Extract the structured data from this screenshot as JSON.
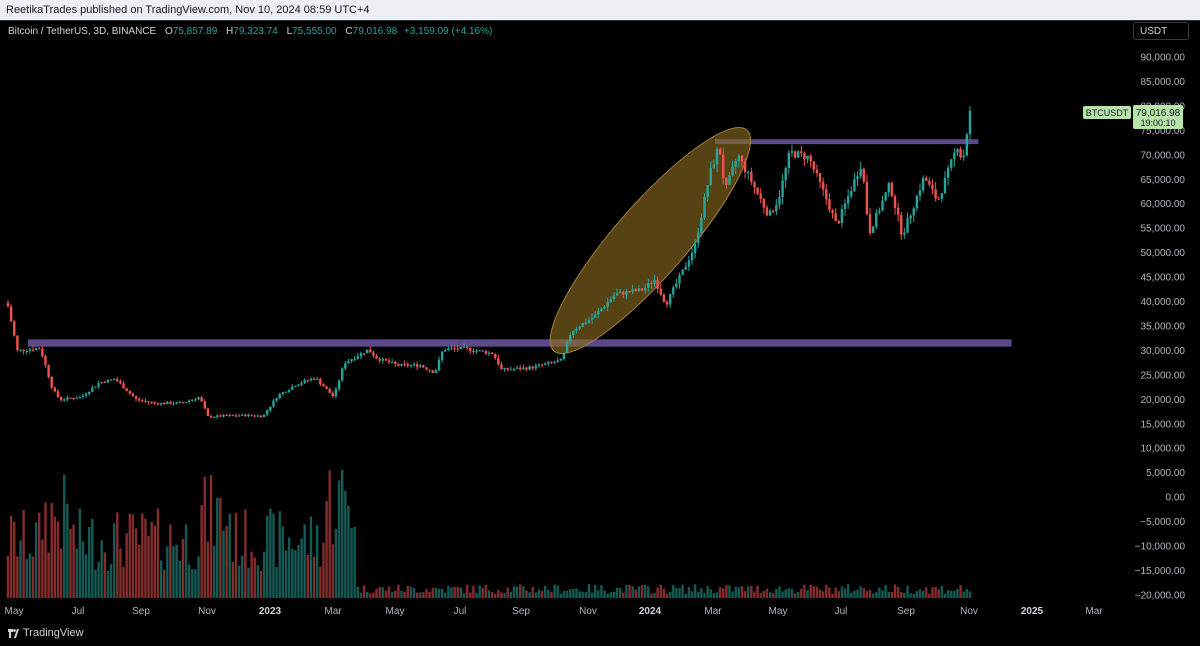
{
  "publisher_line": "ReetikaTrades published on TradingView.com, Nov 10, 2024 08:59 UTC+4",
  "header": {
    "symbol": "Bitcoin / TetherUS, 3D, BINANCE",
    "o_label": "O",
    "o_value": "75,857.89",
    "h_label": "H",
    "h_value": "79,323.74",
    "l_label": "L",
    "l_value": "75,555.00",
    "c_label": "C",
    "c_value": "79,016.98",
    "change": "+3,159.09 (+4.16%)"
  },
  "currency_button": "USDT",
  "brand": "TradingView",
  "colors": {
    "up": "#26a69a",
    "down": "#ef5350",
    "zone": "#5b4a8a",
    "ellipse": "#8a6a1e",
    "price_tag": "#b6e5a9"
  },
  "chart_data": {
    "type": "candlestick",
    "title": "Bitcoin / TetherUS, 3D, BINANCE",
    "grid": false,
    "y_axis": {
      "ticks": [
        "90,000.00",
        "85,000.00",
        "80,000.00",
        "75,000.00",
        "70,000.00",
        "65,000.00",
        "60,000.00",
        "55,000.00",
        "50,000.00",
        "45,000.00",
        "40,000.00",
        "35,000.00",
        "30,000.00",
        "25,000.00",
        "20,000.00",
        "15,000.00",
        "10,000.00",
        "5,000.00",
        "0.00",
        "−5,000.00",
        "−10,000.00",
        "−15,000.00",
        "−20,000.00"
      ],
      "price_range": [
        15000,
        90000
      ]
    },
    "x_axis": {
      "ticks": [
        "May",
        "Jul",
        "Sep",
        "Nov",
        "2023",
        "Mar",
        "May",
        "Jul",
        "Sep",
        "Nov",
        "2024",
        "Mar",
        "May",
        "Jul",
        "Sep",
        "Nov",
        "2025",
        "Mar"
      ],
      "bold": [
        "2023",
        "2024",
        "2025"
      ]
    },
    "price_path": [
      [
        "2022-05-01",
        39000
      ],
      [
        "2022-05-10",
        30000
      ],
      [
        "2022-06-01",
        30500
      ],
      [
        "2022-06-13",
        22000
      ],
      [
        "2022-06-20",
        20000
      ],
      [
        "2022-07-10",
        20500
      ],
      [
        "2022-07-28",
        23500
      ],
      [
        "2022-08-12",
        24200
      ],
      [
        "2022-09-01",
        20000
      ],
      [
        "2022-09-20",
        19200
      ],
      [
        "2022-10-15",
        19300
      ],
      [
        "2022-11-01",
        20500
      ],
      [
        "2022-11-09",
        16500
      ],
      [
        "2022-12-15",
        16800
      ],
      [
        "2023-01-01",
        16600
      ],
      [
        "2023-01-15",
        20800
      ],
      [
        "2023-02-01",
        23000
      ],
      [
        "2023-02-20",
        24500
      ],
      [
        "2023-03-10",
        20500
      ],
      [
        "2023-03-20",
        27500
      ],
      [
        "2023-04-12",
        30200
      ],
      [
        "2023-04-20",
        28500
      ],
      [
        "2023-05-10",
        27000
      ],
      [
        "2023-06-01",
        27000
      ],
      [
        "2023-06-15",
        25500
      ],
      [
        "2023-06-23",
        30300
      ],
      [
        "2023-07-14",
        30400
      ],
      [
        "2023-08-10",
        29400
      ],
      [
        "2023-08-18",
        26100
      ],
      [
        "2023-09-15",
        26500
      ],
      [
        "2023-10-15",
        28000
      ],
      [
        "2023-10-24",
        34000
      ],
      [
        "2023-11-15",
        37000
      ],
      [
        "2023-12-05",
        41500
      ],
      [
        "2024-01-01",
        42500
      ],
      [
        "2024-01-12",
        44500
      ],
      [
        "2024-01-23",
        39500
      ],
      [
        "2024-02-10",
        47000
      ],
      [
        "2024-02-20",
        51500
      ],
      [
        "2024-03-05",
        66000
      ],
      [
        "2024-03-14",
        72000
      ],
      [
        "2024-03-20",
        62500
      ],
      [
        "2024-04-01",
        70000
      ],
      [
        "2024-04-13",
        65000
      ],
      [
        "2024-05-01",
        57500
      ],
      [
        "2024-05-10",
        61000
      ],
      [
        "2024-05-21",
        70500
      ],
      [
        "2024-06-08",
        69500
      ],
      [
        "2024-06-25",
        61000
      ],
      [
        "2024-07-05",
        55500
      ],
      [
        "2024-07-29",
        68500
      ],
      [
        "2024-08-05",
        54000
      ],
      [
        "2024-08-25",
        64000
      ],
      [
        "2024-09-06",
        53500
      ],
      [
        "2024-09-27",
        65500
      ],
      [
        "2024-10-10",
        60500
      ],
      [
        "2024-10-29",
        72000
      ],
      [
        "2024-11-03",
        68500
      ],
      [
        "2024-11-10",
        79017
      ]
    ],
    "zones": [
      {
        "from": "2022-05-20",
        "to": "2024-12-20",
        "low": 30800,
        "high": 32300
      },
      {
        "from": "2024-03-10",
        "to": "2024-11-18",
        "low": 72200,
        "high": 73200
      }
    ],
    "highlight_ellipse": {
      "from": [
        "2023-10-20",
        33000
      ],
      "to": [
        "2024-03-28",
        72000
      ]
    },
    "last_price": {
      "symbol": "BTCUSDT",
      "price": "79,016.98",
      "countdown": "19:00:10"
    },
    "volume_axis_note": "volume bars drawn at bottom; left-axis values shown as printed"
  }
}
